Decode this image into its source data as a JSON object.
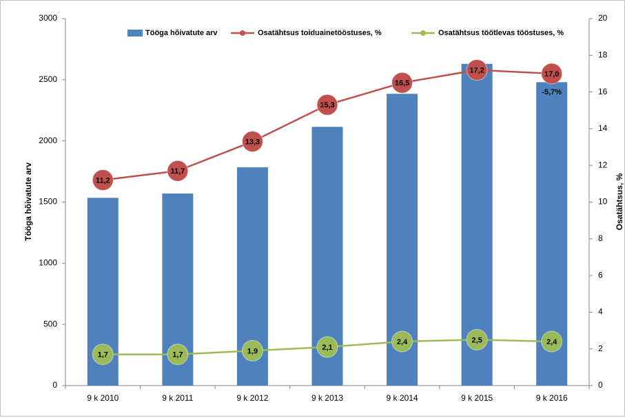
{
  "chart_data": {
    "type": "bar",
    "categories": [
      "9 k 2010",
      "9 k 2011",
      "9 k 2012",
      "9 k 2013",
      "9 k 2014",
      "9 k 2015",
      "9 k 2016"
    ],
    "series": [
      {
        "name": "Tööga hõivatute arv",
        "type": "bar",
        "color": "#4f81bd",
        "values": [
          1535,
          1570,
          1785,
          2115,
          2385,
          2630,
          2480
        ]
      },
      {
        "name": "Osatähtsus toiduainetööstuses, %",
        "type": "line",
        "axis": "y2",
        "color": "#c0504d",
        "values": [
          11.2,
          11.7,
          13.3,
          15.3,
          16.5,
          17.2,
          17.0
        ],
        "value_labels": [
          "11,2",
          "11,7",
          "13,3",
          "15,3",
          "16,5",
          "17,2",
          "17,0"
        ]
      },
      {
        "name": "Osatähtsus töötlevas tööstuses, %",
        "type": "line",
        "axis": "y2",
        "color": "#9bbb59",
        "values": [
          1.7,
          1.7,
          1.9,
          2.1,
          2.4,
          2.5,
          2.4
        ],
        "value_labels": [
          "1,7",
          "1,7",
          "1,9",
          "2,1",
          "2,4",
          "2,5",
          "2,4"
        ]
      }
    ],
    "annotation": "-5,7%",
    "ylabel": "Tööga hõivatute arv",
    "y2label": "Osatähtsus, %",
    "ylim": [
      0,
      3000
    ],
    "yticks": [
      0,
      500,
      1000,
      1500,
      2000,
      2500,
      3000
    ],
    "y2lim": [
      0,
      20
    ],
    "y2ticks": [
      0,
      2,
      4,
      6,
      8,
      10,
      12,
      14,
      16,
      18,
      20
    ],
    "legend": "top"
  }
}
